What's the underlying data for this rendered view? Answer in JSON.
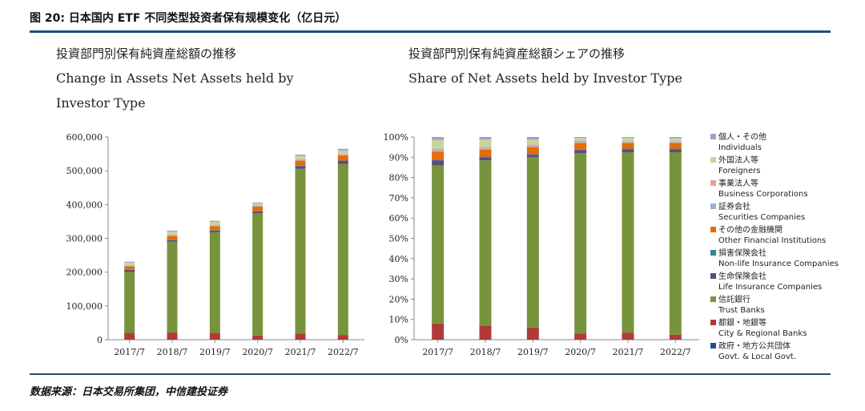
{
  "figure_title": "图 20: 日本国内 ETF 不同类型投资者保有规模变化（亿日元）",
  "source": "数据来源：日本交易所集团，中信建投证券",
  "left_chart": {
    "title_jp": "投資部門別保有純資産総額の推移",
    "title_en_line1": "Change in Assets Net Assets held by",
    "title_en_line2": "Investor Type"
  },
  "right_chart": {
    "title_jp": "投資部門別保有純資産総額シェアの推移",
    "title_en": "Share of Net Assets held by Investor Type"
  },
  "legend": [
    {
      "jp": "個人・その他",
      "en": "Individuals",
      "color": "#a99bc9"
    },
    {
      "jp": "外国法人等",
      "en": "Foreigners",
      "color": "#c4d79b"
    },
    {
      "jp": "事業法人等",
      "en": "Business Corporations",
      "color": "#e6a19b"
    },
    {
      "jp": "証券会社",
      "en": "Securities Companies",
      "color": "#95b3d7"
    },
    {
      "jp": "その他の金融機関",
      "en": "Other Financial Institutions",
      "color": "#e46c0a"
    },
    {
      "jp": "損害保険会社",
      "en": "Non-life Insurance Companies",
      "color": "#31859c"
    },
    {
      "jp": "生命保険会社",
      "en": "Life Insurance Companies",
      "color": "#604a7b"
    },
    {
      "jp": "信託銀行",
      "en": "Trust Banks",
      "color": "#77933c"
    },
    {
      "jp": "都銀・地銀等",
      "en": "City & Regional Banks",
      "color": "#b03a3a"
    },
    {
      "jp": "政府・地方公共団体",
      "en": "Govt. & Local Govt.",
      "color": "#1f4e9e"
    }
  ],
  "chart_data": [
    {
      "type": "bar",
      "stacked": true,
      "title": "Change in Assets Net Assets held by Investor Type",
      "categories": [
        "2017/7",
        "2018/7",
        "2019/7",
        "2020/7",
        "2021/7",
        "2022/7"
      ],
      "ylim": [
        0,
        600000
      ],
      "yticks": [
        "0",
        "100,000",
        "200,000",
        "300,000",
        "400,000",
        "500,000",
        "600,000"
      ],
      "grid": false,
      "series": [
        {
          "name": "Govt. & Local Govt.",
          "values": [
            0,
            0,
            0,
            0,
            0,
            0
          ]
        },
        {
          "name": "City & Regional Banks",
          "values": [
            20000,
            22000,
            20000,
            12000,
            18000,
            14000
          ]
        },
        {
          "name": "Trust Banks",
          "values": [
            180000,
            268000,
            298000,
            362000,
            488000,
            506000
          ]
        },
        {
          "name": "Life Insurance Companies",
          "values": [
            7000,
            5000,
            5000,
            6000,
            8000,
            9000
          ]
        },
        {
          "name": "Non-life Insurance Companies",
          "values": [
            1000,
            1000,
            1000,
            1000,
            1000,
            1000
          ]
        },
        {
          "name": "Other Financial Institutions",
          "values": [
            9000,
            11000,
            12000,
            13000,
            15000,
            16000
          ]
        },
        {
          "name": "Securities Companies",
          "values": [
            1000,
            1000,
            1000,
            1000,
            1000,
            1000
          ]
        },
        {
          "name": "Business Corporations",
          "values": [
            2000,
            3000,
            3000,
            3000,
            3000,
            3000
          ]
        },
        {
          "name": "Foreigners",
          "values": [
            8000,
            9000,
            9000,
            5000,
            10000,
            10000
          ]
        },
        {
          "name": "Individuals",
          "values": [
            3000,
            3000,
            3000,
            3000,
            4000,
            5000
          ]
        }
      ]
    },
    {
      "type": "bar",
      "stacked": true,
      "title": "Share of Net Assets held by Investor Type",
      "categories": [
        "2017/7",
        "2018/7",
        "2019/7",
        "2020/7",
        "2021/7",
        "2022/7"
      ],
      "ylim": [
        0,
        100
      ],
      "yticks": [
        "0%",
        "10%",
        "20%",
        "30%",
        "40%",
        "50%",
        "60%",
        "70%",
        "80%",
        "90%",
        "100%"
      ],
      "grid": false,
      "legend": "right",
      "series": [
        {
          "name": "Govt. & Local Govt.",
          "values": [
            0,
            0,
            0,
            0,
            0,
            0
          ]
        },
        {
          "name": "City & Regional Banks",
          "values": [
            8,
            7,
            6,
            3,
            3.5,
            2.5
          ]
        },
        {
          "name": "Trust Banks",
          "values": [
            78,
            81.5,
            84,
            89,
            89,
            90
          ]
        },
        {
          "name": "Life Insurance Companies",
          "values": [
            2.5,
            1.5,
            1.2,
            1.5,
            1.5,
            1.5
          ]
        },
        {
          "name": "Non-life Insurance Companies",
          "values": [
            0.3,
            0.3,
            0.3,
            0.3,
            0.3,
            0.3
          ]
        },
        {
          "name": "Other Financial Institutions",
          "values": [
            4,
            3.5,
            3.5,
            3.2,
            2.7,
            2.7
          ]
        },
        {
          "name": "Securities Companies",
          "values": [
            0.5,
            0.4,
            0.4,
            0.4,
            0.3,
            0.3
          ]
        },
        {
          "name": "Business Corporations",
          "values": [
            1,
            1,
            0.9,
            0.8,
            0.6,
            0.6
          ]
        },
        {
          "name": "Foreigners",
          "values": [
            4.2,
            3.5,
            2.4,
            1.3,
            1.6,
            1.4
          ]
        },
        {
          "name": "Individuals",
          "values": [
            1.5,
            1.3,
            1.3,
            0.5,
            0.5,
            0.7
          ]
        }
      ]
    }
  ]
}
